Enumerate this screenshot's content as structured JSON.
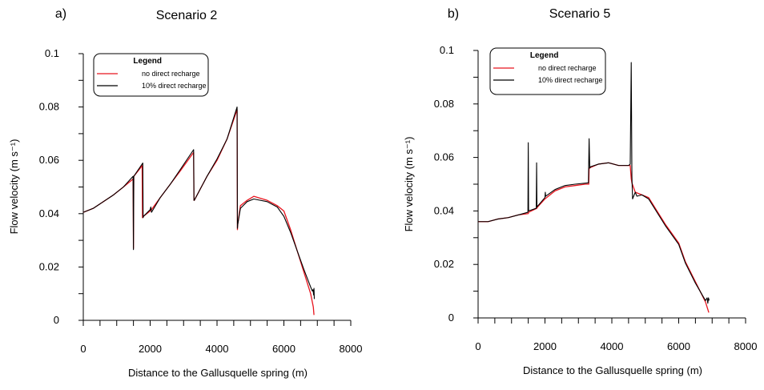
{
  "chart_data": [
    {
      "type": "line",
      "panel_label": "a)",
      "title": "Scenario 2",
      "xlabel": "Distance to the Gallusquelle spring (m)",
      "ylabel": "Flow velocity (m s⁻¹)",
      "xlim": [
        0,
        8000
      ],
      "ylim": [
        0,
        0.1
      ],
      "xticks": [
        0,
        2000,
        4000,
        6000,
        8000
      ],
      "xtick_labels": [
        "0",
        "2000",
        "4000",
        "6000",
        "8000"
      ],
      "yticks": [
        0,
        0.02,
        0.04,
        0.06,
        0.08,
        0.1
      ],
      "ytick_labels": [
        "0",
        "0.02",
        "0.04",
        "0.06",
        "0.08",
        "0.1"
      ],
      "grid": false,
      "legend": {
        "title": "Legend",
        "position": "top-left"
      },
      "series": [
        {
          "name": "no direct recharge",
          "color": "#e8141e",
          "x": [
            0,
            300,
            600,
            900,
            1200,
            1490,
            1500,
            1510,
            1700,
            1760,
            1770,
            1800,
            2000,
            2020,
            2040,
            2300,
            2600,
            2900,
            3300,
            3310,
            3320,
            3700,
            4000,
            4300,
            4600,
            4610,
            4620,
            4700,
            4900,
            5100,
            5500,
            5800,
            6000,
            6200,
            6400,
            6600,
            6800,
            6880,
            6900
          ],
          "y": [
            0.0405,
            0.042,
            0.0445,
            0.047,
            0.05,
            0.053,
            0.027,
            0.054,
            0.057,
            0.058,
            0.0385,
            0.039,
            0.041,
            0.0415,
            0.0415,
            0.046,
            0.051,
            0.056,
            0.063,
            0.045,
            0.045,
            0.054,
            0.06,
            0.068,
            0.079,
            0.034,
            0.036,
            0.043,
            0.045,
            0.0465,
            0.045,
            0.043,
            0.041,
            0.034,
            0.026,
            0.018,
            0.01,
            0.005,
            0.002
          ]
        },
        {
          "name": "10% direct recharge",
          "color": "#000000",
          "x": [
            0,
            300,
            600,
            900,
            1200,
            1490,
            1500,
            1510,
            1700,
            1780,
            1790,
            1800,
            2000,
            2020,
            2040,
            2300,
            2600,
            2900,
            3300,
            3310,
            3320,
            3700,
            4000,
            4300,
            4600,
            4610,
            4620,
            4700,
            4900,
            5100,
            5500,
            5800,
            6000,
            6200,
            6400,
            6600,
            6800,
            6850,
            6870,
            6890,
            6900,
            6910
          ],
          "y": [
            0.0405,
            0.042,
            0.0445,
            0.047,
            0.05,
            0.054,
            0.0265,
            0.054,
            0.0575,
            0.059,
            0.0385,
            0.039,
            0.0415,
            0.0425,
            0.0405,
            0.046,
            0.051,
            0.0565,
            0.064,
            0.045,
            0.045,
            0.054,
            0.0605,
            0.068,
            0.08,
            0.0345,
            0.036,
            0.042,
            0.0445,
            0.0455,
            0.0445,
            0.0425,
            0.039,
            0.033,
            0.026,
            0.019,
            0.0125,
            0.011,
            0.0115,
            0.0095,
            0.012,
            0.008
          ]
        }
      ]
    },
    {
      "type": "line",
      "panel_label": "b)",
      "title": "Scenario 5",
      "xlabel": "Distance to the Gallusquelle spring (m)",
      "ylabel": "Flow velocity (m s⁻¹)",
      "xlim": [
        0,
        8000
      ],
      "ylim": [
        0,
        0.1
      ],
      "xticks": [
        0,
        2000,
        4000,
        6000,
        8000
      ],
      "xtick_labels": [
        "0",
        "2000",
        "4000",
        "6000",
        "8000"
      ],
      "yticks": [
        0,
        0.02,
        0.04,
        0.06,
        0.08,
        0.1
      ],
      "ytick_labels": [
        "0",
        "0.02",
        "0.04",
        "0.06",
        "0.08",
        "0.1"
      ],
      "grid": false,
      "legend": {
        "title": "Legend",
        "position": "top-left"
      },
      "series": [
        {
          "name": "no direct recharge",
          "color": "#e8141e",
          "x": [
            0,
            300,
            600,
            900,
            1200,
            1490,
            1500,
            1510,
            1760,
            1780,
            2000,
            2300,
            2600,
            2900,
            3200,
            3310,
            3320,
            3600,
            3900,
            4200,
            4500,
            4550,
            4580,
            4600,
            4700,
            4900,
            5100,
            5300,
            5600,
            6000,
            6200,
            6500,
            6800,
            6900
          ],
          "y": [
            0.036,
            0.036,
            0.037,
            0.0375,
            0.0385,
            0.039,
            0.039,
            0.0395,
            0.041,
            0.0415,
            0.0445,
            0.0475,
            0.049,
            0.0495,
            0.05,
            0.05,
            0.056,
            0.0575,
            0.058,
            0.057,
            0.057,
            0.057,
            0.052,
            0.0505,
            0.047,
            0.046,
            0.045,
            0.041,
            0.035,
            0.028,
            0.021,
            0.0135,
            0.006,
            0.002
          ]
        },
        {
          "name": "10% direct recharge",
          "color": "#000000",
          "x": [
            0,
            300,
            600,
            900,
            1200,
            1490,
            1500,
            1510,
            1740,
            1750,
            1760,
            2000,
            2010,
            2020,
            2300,
            2600,
            2900,
            3300,
            3320,
            3340,
            3360,
            3600,
            3900,
            4200,
            4500,
            4550,
            4580,
            4600,
            4620,
            4700,
            4750,
            4900,
            5100,
            5300,
            5600,
            6000,
            6200,
            6500,
            6800,
            6850,
            6870,
            6890,
            6910
          ],
          "y": [
            0.036,
            0.036,
            0.037,
            0.0375,
            0.0385,
            0.0395,
            0.0655,
            0.04,
            0.041,
            0.058,
            0.0415,
            0.045,
            0.047,
            0.0455,
            0.048,
            0.0495,
            0.05,
            0.0505,
            0.067,
            0.056,
            0.0565,
            0.0575,
            0.058,
            0.057,
            0.057,
            0.0575,
            0.0955,
            0.053,
            0.0445,
            0.047,
            0.0455,
            0.046,
            0.0445,
            0.0405,
            0.0345,
            0.0275,
            0.0205,
            0.013,
            0.0065,
            0.0075,
            0.0055,
            0.0075,
            0.0065
          ]
        }
      ]
    }
  ]
}
